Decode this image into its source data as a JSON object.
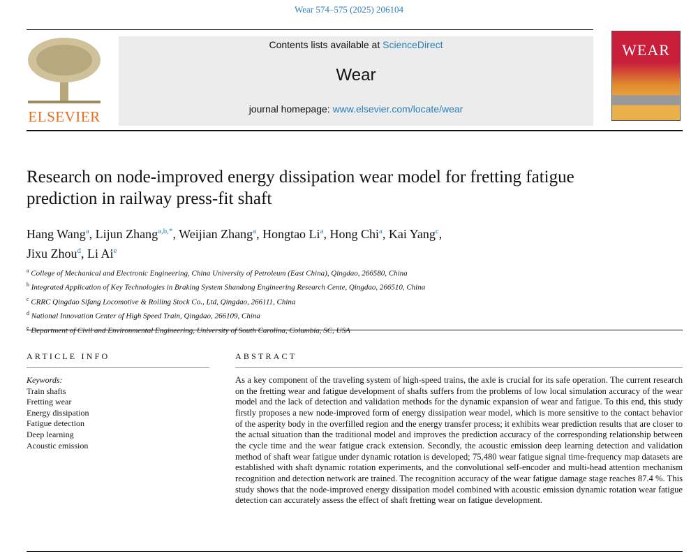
{
  "citation": "Wear 574–575 (2025) 206104",
  "header": {
    "contents_prefix": "Contents lists available at ",
    "contents_link": "ScienceDirect",
    "journal": "Wear",
    "homepage_prefix": "journal homepage: ",
    "homepage_link": "www.elsevier.com/locate/wear",
    "publisher": "ELSEVIER",
    "cover_title": "WEAR"
  },
  "title": "Research on node-improved energy dissipation wear model for fretting fatigue prediction in railway press-fit shaft",
  "authors": [
    {
      "name": "Hang Wang",
      "sup": "a"
    },
    {
      "name": "Lijun Zhang",
      "sup": "a,b,*"
    },
    {
      "name": "Weijian Zhang",
      "sup": "a"
    },
    {
      "name": "Hongtao Li",
      "sup": "a"
    },
    {
      "name": "Hong Chi",
      "sup": "a"
    },
    {
      "name": "Kai Yang",
      "sup": "c"
    },
    {
      "name": "Jixu Zhou",
      "sup": "d"
    },
    {
      "name": "Li Ai",
      "sup": "e"
    }
  ],
  "affiliations": [
    {
      "sup": "a",
      "text": "College of Mechanical and Electronic Engineering, China University of Petroleum (East China), Qingdao, 266580, China"
    },
    {
      "sup": "b",
      "text": "Integrated Application of Key Technologies in Braking System Shandong Engineering Research Cente, Qingdao, 266510, China"
    },
    {
      "sup": "c",
      "text": "CRRC Qingdao Sifang Locomotive & Rolling Stock Co., Ltd, Qingdao, 266111, China"
    },
    {
      "sup": "d",
      "text": "National Innovation Center of High Speed Train, Qingdao, 266109, China"
    },
    {
      "sup": "e",
      "text": "Department of Civil and Environmental Engineering, University of South Carolina, Columbia, SC, USA"
    }
  ],
  "article_info": {
    "heading": "ARTICLE INFO",
    "keywords_label": "Keywords:",
    "keywords": [
      "Train shafts",
      "Fretting wear",
      "Energy dissipation",
      "Fatigue detection",
      "Deep learning",
      "Acoustic emission"
    ]
  },
  "abstract": {
    "heading": "ABSTRACT",
    "text": "As a key component of the traveling system of high-speed trains, the axle is crucial for its safe operation. The current research on the fretting wear and fatigue development of shafts suffers from the problems of low local simulation accuracy of the wear model and the lack of detection and validation methods for the dynamic expansion of wear and fatigue. To this end, this study firstly proposes a new node-improved form of energy dissipation wear model, which is more sensitive to the contact behavior of the asperity body in the overfilled region and the energy transfer process; it exhibits wear prediction results that are closer to the actual situation than the traditional model and improves the prediction accuracy of the corresponding relationship between the cycle time and the wear fatigue crack extension. Secondly, the acoustic emission deep learning detection and validation method of shaft wear fatigue under dynamic rotation is developed; 75,480 wear fatigue signal time-frequency map datasets are established with shaft dynamic rotation experiments, and the convolutional self-encoder and multi-head attention mechanism recognition and detection network are trained. The recognition accuracy of the wear fatigue damage stage reaches 87.4 %. This study shows that the node-improved energy dissipation model combined with acoustic emission dynamic rotation wear fatigue detection can accurately assess the effect of shaft fretting wear on fatigue development."
  }
}
